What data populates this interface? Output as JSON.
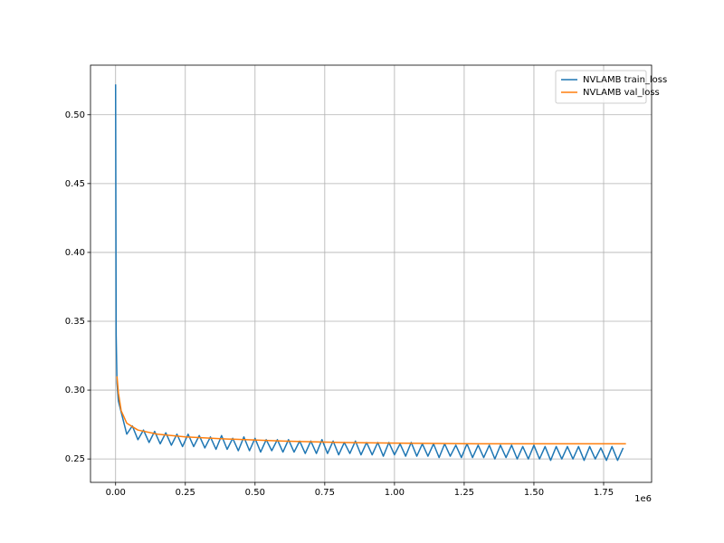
{
  "chart_data": {
    "type": "line",
    "xlim": [
      -90000,
      1922000
    ],
    "ylim": [
      0.233,
      0.536
    ],
    "xticks": [
      {
        "value": 0,
        "label": "0.00"
      },
      {
        "value": 250000,
        "label": "0.25"
      },
      {
        "value": 500000,
        "label": "0.50"
      },
      {
        "value": 750000,
        "label": "0.75"
      },
      {
        "value": 1000000,
        "label": "1.00"
      },
      {
        "value": 1250000,
        "label": "1.25"
      },
      {
        "value": 1500000,
        "label": "1.50"
      },
      {
        "value": 1750000,
        "label": "1.75"
      }
    ],
    "x_offset_label": "1e6",
    "yticks": [
      0.25,
      {
        "value": 0.3,
        "label": "0.30"
      },
      0.35,
      {
        "value": 0.4,
        "label": "0.40"
      },
      0.45,
      {
        "value": 0.5,
        "label": "0.50"
      }
    ],
    "grid": true,
    "legend": "upper right",
    "series": [
      {
        "name": "NVLAMB train_loss",
        "color": "#1f77b4",
        "x": [
          0,
          2000,
          5000,
          10000,
          20000,
          40000,
          60000,
          80000,
          100000,
          120000,
          140000,
          160000,
          180000,
          200000,
          220000,
          240000,
          260000,
          280000,
          300000,
          320000,
          340000,
          360000,
          380000,
          400000,
          420000,
          440000,
          460000,
          480000,
          500000,
          520000,
          540000,
          560000,
          580000,
          600000,
          620000,
          640000,
          660000,
          680000,
          700000,
          720000,
          740000,
          760000,
          780000,
          800000,
          820000,
          840000,
          860000,
          880000,
          900000,
          920000,
          940000,
          960000,
          980000,
          1000000,
          1020000,
          1040000,
          1060000,
          1080000,
          1100000,
          1120000,
          1140000,
          1160000,
          1180000,
          1200000,
          1220000,
          1240000,
          1260000,
          1280000,
          1300000,
          1320000,
          1340000,
          1360000,
          1380000,
          1400000,
          1420000,
          1440000,
          1460000,
          1480000,
          1500000,
          1520000,
          1540000,
          1560000,
          1580000,
          1600000,
          1620000,
          1640000,
          1660000,
          1680000,
          1700000,
          1720000,
          1740000,
          1760000,
          1780000,
          1800000,
          1820000
        ],
        "values": [
          0.522,
          0.34,
          0.305,
          0.292,
          0.284,
          0.268,
          0.274,
          0.264,
          0.271,
          0.262,
          0.27,
          0.261,
          0.269,
          0.26,
          0.268,
          0.259,
          0.268,
          0.259,
          0.267,
          0.258,
          0.266,
          0.257,
          0.267,
          0.257,
          0.265,
          0.256,
          0.266,
          0.256,
          0.265,
          0.255,
          0.264,
          0.256,
          0.264,
          0.255,
          0.264,
          0.255,
          0.263,
          0.254,
          0.263,
          0.254,
          0.264,
          0.254,
          0.263,
          0.253,
          0.262,
          0.254,
          0.263,
          0.253,
          0.262,
          0.253,
          0.262,
          0.252,
          0.262,
          0.253,
          0.261,
          0.252,
          0.262,
          0.252,
          0.261,
          0.252,
          0.261,
          0.251,
          0.261,
          0.252,
          0.26,
          0.251,
          0.261,
          0.251,
          0.26,
          0.251,
          0.26,
          0.25,
          0.26,
          0.251,
          0.26,
          0.25,
          0.259,
          0.25,
          0.26,
          0.25,
          0.259,
          0.249,
          0.259,
          0.25,
          0.259,
          0.25,
          0.259,
          0.249,
          0.259,
          0.25,
          0.258,
          0.249,
          0.259,
          0.249,
          0.258
        ]
      },
      {
        "name": "NVLAMB val_loss",
        "color": "#ff7f0e",
        "x": [
          5000,
          10000,
          20000,
          40000,
          80000,
          150000,
          250000,
          400000,
          600000,
          800000,
          1000000,
          1300000,
          1600000,
          1830000
        ],
        "values": [
          0.31,
          0.298,
          0.285,
          0.276,
          0.271,
          0.268,
          0.266,
          0.2645,
          0.263,
          0.262,
          0.2615,
          0.261,
          0.261,
          0.261
        ]
      }
    ]
  }
}
